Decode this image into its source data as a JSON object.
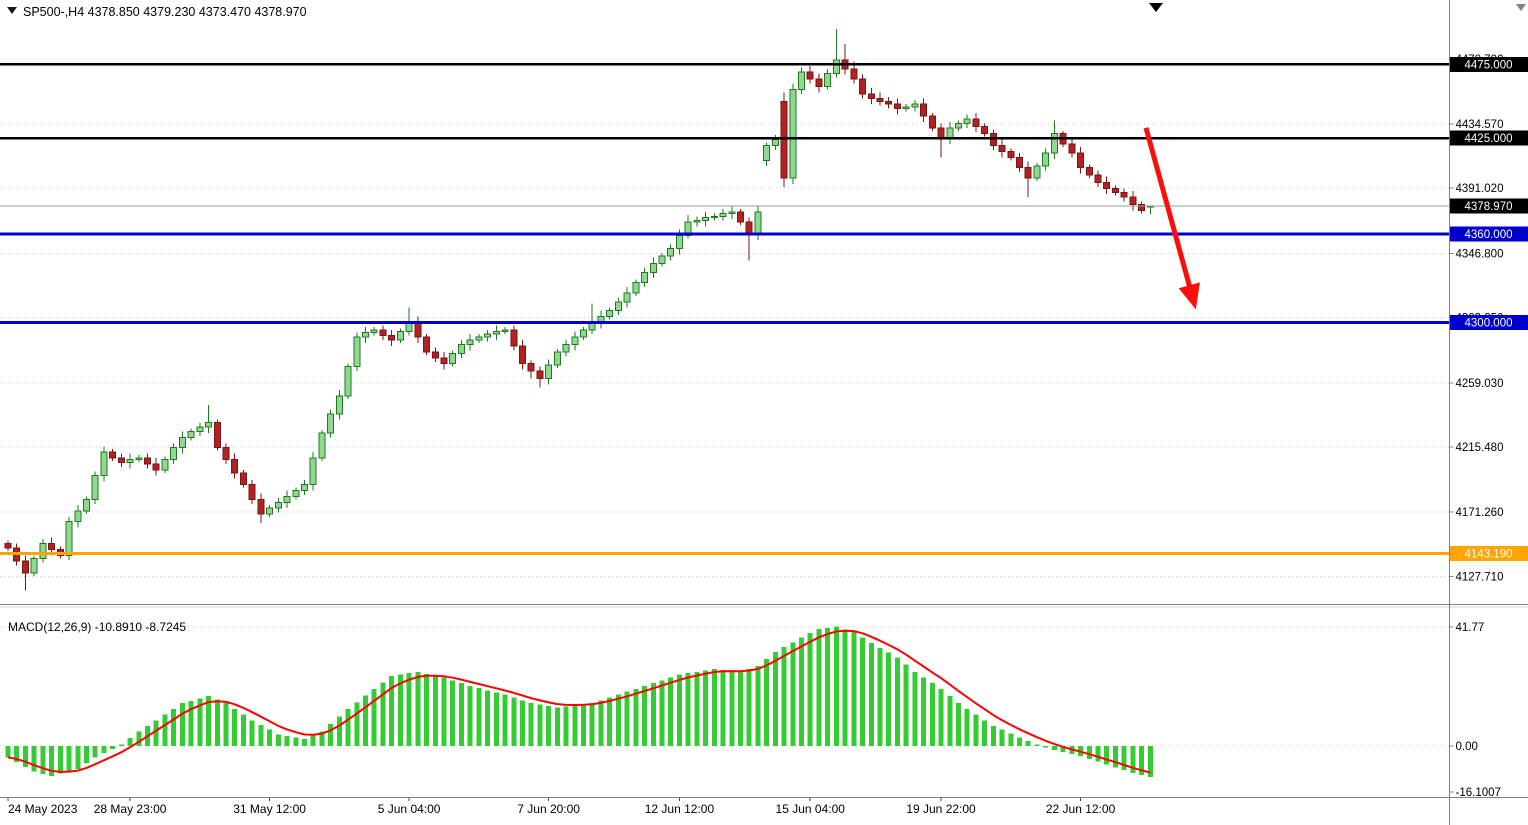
{
  "header": {
    "text": "SP500-,H4 4378.850 4379.230 4373.470 4378.970",
    "symbol": "SP500-",
    "timeframe": "H4",
    "ohlc": {
      "open": "4378.850",
      "high": "4379.230",
      "low": "4373.470",
      "close": "4378.970"
    }
  },
  "indicator": {
    "label": "MACD(12,26,9) -10.8910 -8.7245",
    "name": "MACD(12,26,9)",
    "macd_value": "-10.8910",
    "signal_value": "-8.7245"
  },
  "colors": {
    "background": "#FFFFFF",
    "bull_fill": "#90D890",
    "bull_border": "#1F7A1F",
    "bear_fill": "#B22222",
    "bear_border": "#7A1616",
    "grid": "#C8C8C8",
    "level_black": "#000000",
    "level_blue": "#0000CD",
    "level_orange": "#FFA500",
    "current_price_line": "#9A9A9A",
    "macd_histogram": "#33CC33",
    "macd_signal": "#FF0000",
    "arrow": "#FF0D0D",
    "axis_text": "#000000",
    "badge_text": "#FFFFFF",
    "separator": "#808080"
  },
  "chart_data": {
    "type": "candlestick",
    "title": "SP500-,H4",
    "price_ylim": [
      4109.0,
      4518.7
    ],
    "y_ticks": [
      {
        "text": "4478.700",
        "price": 4478.7
      },
      {
        "text": "4434.570",
        "price": 4434.57
      },
      {
        "text": "4391.020",
        "price": 4391.02
      },
      {
        "text": "4346.800",
        "price": 4346.8
      },
      {
        "text": "4303.250",
        "price": 4303.25
      },
      {
        "text": "4259.030",
        "price": 4259.03
      },
      {
        "text": "4215.480",
        "price": 4215.48
      },
      {
        "text": "4171.260",
        "price": 4171.26
      },
      {
        "text": "4127.710",
        "price": 4127.71
      }
    ],
    "x_ticks": [
      {
        "text": "24 May 2023",
        "bar": 0,
        "align": "left"
      },
      {
        "text": "28 May 23:00",
        "bar": 14,
        "align": "center"
      },
      {
        "text": "31 May 12:00",
        "bar": 30,
        "align": "center"
      },
      {
        "text": "5 Jun 04:00",
        "bar": 46,
        "align": "center"
      },
      {
        "text": "7 Jun 20:00",
        "bar": 62,
        "align": "center"
      },
      {
        "text": "12 Jun 12:00",
        "bar": 77,
        "align": "center"
      },
      {
        "text": "15 Jun 04:00",
        "bar": 92,
        "align": "center"
      },
      {
        "text": "19 Jun 22:00",
        "bar": 107,
        "align": "center"
      },
      {
        "text": "22 Jun 12:00",
        "bar": 123,
        "align": "center"
      }
    ],
    "levels": [
      {
        "price": 4475.0,
        "label": "4475.000",
        "color": "#000000",
        "width": 2.5
      },
      {
        "price": 4425.0,
        "label": "4425.000",
        "color": "#000000",
        "width": 2.5
      },
      {
        "price": 4360.0,
        "label": "4360.000",
        "color": "#0000CD",
        "width": 3
      },
      {
        "price": 4300.0,
        "label": "4300.000",
        "color": "#0000CD",
        "width": 3
      },
      {
        "price": 4143.19,
        "label": "4143.190",
        "color": "#FFA500",
        "width": 3
      }
    ],
    "current_price": {
      "value": 4378.97,
      "label": "4378.970"
    },
    "candles": [
      [
        4150,
        4152,
        4145,
        4147
      ],
      [
        4147,
        4150,
        4135,
        4138
      ],
      [
        4138,
        4142,
        4118,
        4130
      ],
      [
        4130,
        4142,
        4128,
        4140
      ],
      [
        4140,
        4153,
        4137,
        4150
      ],
      [
        4150,
        4154,
        4142,
        4146
      ],
      [
        4146,
        4148,
        4140,
        4142
      ],
      [
        4142,
        4168,
        4139,
        4165
      ],
      [
        4165,
        4176,
        4161,
        4172
      ],
      [
        4172,
        4182,
        4170,
        4180
      ],
      [
        4180,
        4199,
        4177,
        4196
      ],
      [
        4196,
        4216,
        4192,
        4212
      ],
      [
        4212,
        4214,
        4206,
        4208
      ],
      [
        4208,
        4211,
        4202,
        4205
      ],
      [
        4205,
        4211,
        4201,
        4207
      ],
      [
        4207,
        4210,
        4205,
        4208
      ],
      [
        4208,
        4211,
        4201,
        4204
      ],
      [
        4204,
        4208,
        4196,
        4200
      ],
      [
        4200,
        4209,
        4198,
        4207
      ],
      [
        4207,
        4218,
        4204,
        4215
      ],
      [
        4215,
        4226,
        4211,
        4222
      ],
      [
        4222,
        4228,
        4220,
        4226
      ],
      [
        4226,
        4232,
        4223,
        4229
      ],
      [
        4229,
        4244,
        4225,
        4232
      ],
      [
        4232,
        4234,
        4213,
        4215
      ],
      [
        4215,
        4218,
        4204,
        4207
      ],
      [
        4207,
        4211,
        4194,
        4198
      ],
      [
        4198,
        4200,
        4188,
        4190
      ],
      [
        4190,
        4193,
        4177,
        4180
      ],
      [
        4180,
        4184,
        4164,
        4170
      ],
      [
        4170,
        4176,
        4168,
        4174
      ],
      [
        4174,
        4181,
        4171,
        4178
      ],
      [
        4178,
        4186,
        4174,
        4182
      ],
      [
        4182,
        4188,
        4180,
        4186
      ],
      [
        4186,
        4193,
        4183,
        4190
      ],
      [
        4190,
        4212,
        4186,
        4208
      ],
      [
        4208,
        4227,
        4206,
        4225
      ],
      [
        4225,
        4241,
        4222,
        4238
      ],
      [
        4238,
        4254,
        4234,
        4250
      ],
      [
        4250,
        4272,
        4248,
        4270
      ],
      [
        4270,
        4293,
        4267,
        4290
      ],
      [
        4290,
        4297,
        4286,
        4293
      ],
      [
        4293,
        4297,
        4291,
        4295
      ],
      [
        4295,
        4298,
        4288,
        4291
      ],
      [
        4291,
        4295,
        4284,
        4288
      ],
      [
        4288,
        4296,
        4286,
        4294
      ],
      [
        4294,
        4310,
        4291,
        4300
      ],
      [
        4300,
        4304,
        4286,
        4290
      ],
      [
        4290,
        4292,
        4278,
        4280
      ],
      [
        4280,
        4283,
        4273,
        4276
      ],
      [
        4276,
        4280,
        4268,
        4272
      ],
      [
        4272,
        4281,
        4270,
        4279
      ],
      [
        4279,
        4288,
        4276,
        4285
      ],
      [
        4285,
        4292,
        4281,
        4288
      ],
      [
        4288,
        4292,
        4286,
        4290
      ],
      [
        4290,
        4295,
        4287,
        4292
      ],
      [
        4292,
        4298,
        4288,
        4294
      ],
      [
        4294,
        4297,
        4292,
        4295
      ],
      [
        4295,
        4298,
        4281,
        4284
      ],
      [
        4284,
        4288,
        4268,
        4272
      ],
      [
        4272,
        4274,
        4262,
        4267
      ],
      [
        4267,
        4270,
        4256,
        4262
      ],
      [
        4262,
        4275,
        4258,
        4271
      ],
      [
        4271,
        4282,
        4269,
        4280
      ],
      [
        4280,
        4288,
        4277,
        4285
      ],
      [
        4285,
        4294,
        4281,
        4290
      ],
      [
        4290,
        4297,
        4288,
        4295
      ],
      [
        4295,
        4313,
        4292,
        4300
      ],
      [
        4300,
        4308,
        4296,
        4304
      ],
      [
        4304,
        4310,
        4302,
        4308
      ],
      [
        4308,
        4317,
        4305,
        4314
      ],
      [
        4314,
        4324,
        4310,
        4320
      ],
      [
        4320,
        4329,
        4318,
        4327
      ],
      [
        4327,
        4337,
        4324,
        4334
      ],
      [
        4334,
        4344,
        4330,
        4340
      ],
      [
        4340,
        4347,
        4338,
        4345
      ],
      [
        4345,
        4353,
        4342,
        4350
      ],
      [
        4350,
        4363,
        4346,
        4359
      ],
      [
        4359,
        4373,
        4357,
        4368
      ],
      [
        4368,
        4372,
        4365,
        4369
      ],
      [
        4369,
        4375,
        4365,
        4371
      ],
      [
        4371,
        4374,
        4369,
        4372
      ],
      [
        4372,
        4377,
        4369,
        4374
      ],
      [
        4374,
        4379,
        4370,
        4375
      ],
      [
        4375,
        4377,
        4366,
        4368
      ],
      [
        4368,
        4371,
        4342,
        4360
      ],
      [
        4360,
        4379,
        4356,
        4375
      ],
      [
        4410,
        4422,
        4406,
        4420
      ],
      [
        4420,
        4427,
        4417,
        4424
      ],
      [
        4450,
        4456,
        4392,
        4398
      ],
      [
        4398,
        4462,
        4394,
        4458
      ],
      [
        4458,
        4473,
        4455,
        4470
      ],
      [
        4470,
        4474,
        4462,
        4465
      ],
      [
        4465,
        4469,
        4456,
        4460
      ],
      [
        4460,
        4472,
        4458,
        4469
      ],
      [
        4469,
        4499,
        4466,
        4478
      ],
      [
        4478,
        4489,
        4468,
        4472
      ],
      [
        4472,
        4477,
        4462,
        4465
      ],
      [
        4465,
        4468,
        4452,
        4455
      ],
      [
        4455,
        4459,
        4448,
        4452
      ],
      [
        4452,
        4456,
        4447,
        4450
      ],
      [
        4450,
        4453,
        4445,
        4448
      ],
      [
        4448,
        4452,
        4441,
        4445
      ],
      [
        4445,
        4448,
        4443,
        4446
      ],
      [
        4446,
        4451,
        4443,
        4448
      ],
      [
        4448,
        4452,
        4436,
        4440
      ],
      [
        4440,
        4442,
        4430,
        4432
      ],
      [
        4432,
        4435,
        4412,
        4425
      ],
      [
        4425,
        4436,
        4421,
        4432
      ],
      [
        4432,
        4437,
        4430,
        4435
      ],
      [
        4435,
        4441,
        4432,
        4438
      ],
      [
        4438,
        4442,
        4429,
        4433
      ],
      [
        4433,
        4435,
        4426,
        4428
      ],
      [
        4428,
        4431,
        4417,
        4420
      ],
      [
        4420,
        4424,
        4412,
        4416
      ],
      [
        4416,
        4418,
        4410,
        4412
      ],
      [
        4412,
        4415,
        4402,
        4405
      ],
      [
        4405,
        4409,
        4385,
        4398
      ],
      [
        4398,
        4408,
        4396,
        4406
      ],
      [
        4406,
        4418,
        4403,
        4415
      ],
      [
        4415,
        4437,
        4411,
        4428
      ],
      [
        4428,
        4430,
        4419,
        4421
      ],
      [
        4421,
        4424,
        4412,
        4415
      ],
      [
        4415,
        4419,
        4401,
        4405
      ],
      [
        4405,
        4407,
        4398,
        4400
      ],
      [
        4400,
        4403,
        4392,
        4395
      ],
      [
        4395,
        4399,
        4387,
        4391
      ],
      [
        4391,
        4393,
        4386,
        4388
      ],
      [
        4388,
        4391,
        4382,
        4385
      ],
      [
        4385,
        4389,
        4376,
        4380
      ],
      [
        4380,
        4382,
        4374,
        4376
      ],
      [
        4378.85,
        4379.23,
        4373.47,
        4378.97
      ]
    ],
    "indicator": {
      "type": "histogram_with_signal",
      "name": "MACD(12,26,9)",
      "params": [
        12,
        26,
        9
      ],
      "last_macd": -10.891,
      "last_signal": -8.7245,
      "ylim": [
        -17.9,
        48.7
      ],
      "y_ticks": [
        {
          "text": "41.77",
          "value": 41.77,
          "grid": true
        },
        {
          "text": "0.00",
          "value": 0,
          "grid": true
        },
        {
          "text": "-16.1007",
          "value": -16.1007,
          "grid": false
        }
      ],
      "values": [
        -4,
        -5.7,
        -7.3,
        -9,
        -9.8,
        -10.5,
        -9.7,
        -8.8,
        -8,
        -6,
        -4,
        -2.5,
        -1,
        0.5,
        2.8,
        5,
        7,
        9,
        11,
        13,
        15,
        15.8,
        16.7,
        17.5,
        16.3,
        15,
        13,
        11,
        9,
        7.3,
        5.7,
        4,
        3.5,
        3,
        2.5,
        3.8,
        5,
        7.7,
        10.3,
        13,
        15.3,
        17.7,
        20,
        22.3,
        24.5,
        25,
        25.5,
        26,
        25.3,
        24.7,
        24,
        23,
        22,
        21,
        20.3,
        19.5,
        18.8,
        18,
        17,
        16,
        15,
        14.5,
        14,
        13.5,
        13.9,
        14.3,
        14.6,
        15,
        16,
        17,
        18,
        19,
        20,
        21,
        22,
        23,
        24,
        25,
        25.5,
        26,
        26.5,
        27,
        26.7,
        26.3,
        26,
        27,
        28,
        30.5,
        33,
        34.7,
        36.3,
        38,
        39.5,
        41,
        41.4,
        41.8,
        40.9,
        40,
        38,
        36,
        34.3,
        32.7,
        31,
        28.5,
        26,
        24,
        22,
        20,
        17.5,
        15,
        13,
        11,
        9,
        7,
        5.7,
        4.3,
        3,
        1.8,
        0.5,
        -0.5,
        -1.5,
        -2.2,
        -2.8,
        -3.5,
        -4.5,
        -5.5,
        -6.5,
        -7.5,
        -8.5,
        -9.5,
        -10.2,
        -10.89
      ]
    },
    "annotations": [
      {
        "type": "arrow",
        "color": "#FF0D0D",
        "stroke_width": 5,
        "from": {
          "bar": 130.5,
          "price": 4432
        },
        "to": {
          "bar": 135.8,
          "price": 4318
        }
      }
    ]
  }
}
